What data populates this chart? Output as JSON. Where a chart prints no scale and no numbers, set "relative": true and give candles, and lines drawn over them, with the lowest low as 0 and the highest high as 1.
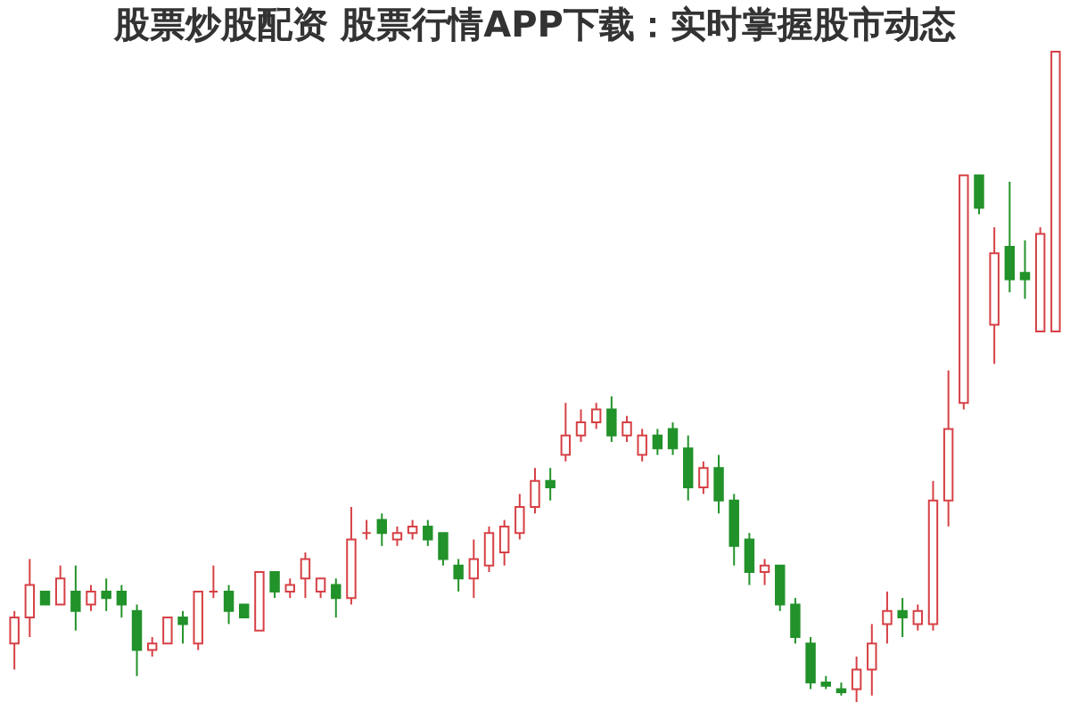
{
  "chart_data": {
    "type": "candlestick",
    "title": "股票炒股配资 股票行情APP下载：实时掌握股市动态",
    "relative": true,
    "tick_labels": false,
    "grid": false,
    "categories": [
      null,
      null,
      null,
      null,
      null,
      null,
      null,
      null,
      null,
      null,
      null,
      null,
      null,
      null,
      null,
      null,
      null,
      null,
      null,
      null,
      null,
      null,
      null,
      null,
      null,
      null,
      null,
      null,
      null,
      null,
      null,
      null,
      null,
      null,
      null,
      null,
      null,
      null,
      null,
      null,
      null,
      null,
      null,
      null,
      null,
      null,
      null,
      null,
      null,
      null,
      null,
      null,
      null,
      null,
      null,
      null,
      null,
      null,
      null,
      null,
      null,
      null,
      null,
      null,
      null,
      null,
      null,
      null,
      null
    ],
    "ohlc": [
      [
        0.09,
        0.14,
        0.05,
        0.13
      ],
      [
        0.13,
        0.22,
        0.1,
        0.18
      ],
      [
        0.17,
        0.17,
        0.15,
        0.15
      ],
      [
        0.15,
        0.21,
        0.15,
        0.19
      ],
      [
        0.17,
        0.21,
        0.11,
        0.14
      ],
      [
        0.15,
        0.18,
        0.14,
        0.17
      ],
      [
        0.17,
        0.19,
        0.14,
        0.16
      ],
      [
        0.17,
        0.18,
        0.13,
        0.15
      ],
      [
        0.14,
        0.15,
        0.04,
        0.08
      ],
      [
        0.08,
        0.1,
        0.07,
        0.09
      ],
      [
        0.09,
        0.13,
        0.09,
        0.13
      ],
      [
        0.13,
        0.14,
        0.09,
        0.12
      ],
      [
        0.09,
        0.17,
        0.08,
        0.17
      ],
      [
        0.17,
        0.21,
        0.16,
        0.17
      ],
      [
        0.17,
        0.18,
        0.12,
        0.14
      ],
      [
        0.15,
        0.15,
        0.13,
        0.13
      ],
      [
        0.11,
        0.2,
        0.11,
        0.2
      ],
      [
        0.2,
        0.2,
        0.16,
        0.17
      ],
      [
        0.17,
        0.19,
        0.16,
        0.18
      ],
      [
        0.19,
        0.23,
        0.16,
        0.22
      ],
      [
        0.17,
        0.19,
        0.16,
        0.19
      ],
      [
        0.18,
        0.19,
        0.13,
        0.16
      ],
      [
        0.16,
        0.3,
        0.15,
        0.25
      ],
      [
        0.26,
        0.28,
        0.25,
        0.26
      ],
      [
        0.28,
        0.29,
        0.24,
        0.26
      ],
      [
        0.25,
        0.27,
        0.24,
        0.26
      ],
      [
        0.26,
        0.28,
        0.25,
        0.27
      ],
      [
        0.27,
        0.28,
        0.24,
        0.25
      ],
      [
        0.26,
        0.26,
        0.21,
        0.22
      ],
      [
        0.21,
        0.22,
        0.17,
        0.19
      ],
      [
        0.19,
        0.25,
        0.16,
        0.22
      ],
      [
        0.21,
        0.27,
        0.2,
        0.26
      ],
      [
        0.23,
        0.28,
        0.21,
        0.27
      ],
      [
        0.26,
        0.32,
        0.25,
        0.3
      ],
      [
        0.3,
        0.36,
        0.29,
        0.34
      ],
      [
        0.34,
        0.36,
        0.31,
        0.33
      ],
      [
        0.38,
        0.46,
        0.37,
        0.41
      ],
      [
        0.41,
        0.45,
        0.4,
        0.43
      ],
      [
        0.43,
        0.46,
        0.42,
        0.45
      ],
      [
        0.45,
        0.47,
        0.4,
        0.41
      ],
      [
        0.41,
        0.44,
        0.4,
        0.43
      ],
      [
        0.38,
        0.42,
        0.37,
        0.41
      ],
      [
        0.41,
        0.42,
        0.38,
        0.39
      ],
      [
        0.42,
        0.43,
        0.38,
        0.39
      ],
      [
        0.39,
        0.41,
        0.31,
        0.33
      ],
      [
        0.33,
        0.37,
        0.32,
        0.36
      ],
      [
        0.36,
        0.38,
        0.29,
        0.31
      ],
      [
        0.31,
        0.32,
        0.21,
        0.24
      ],
      [
        0.25,
        0.26,
        0.18,
        0.2
      ],
      [
        0.2,
        0.22,
        0.18,
        0.21
      ],
      [
        0.21,
        0.21,
        0.14,
        0.15
      ],
      [
        0.15,
        0.16,
        0.09,
        0.1
      ],
      [
        0.09,
        0.1,
        0.02,
        0.03
      ],
      [
        0.03,
        0.04,
        0.02,
        0.025
      ],
      [
        0.02,
        0.03,
        0.01,
        0.015
      ],
      [
        0.02,
        0.07,
        0,
        0.05
      ],
      [
        0.05,
        0.12,
        0.01,
        0.09
      ],
      [
        0.12,
        0.17,
        0.09,
        0.14
      ],
      [
        0.14,
        0.16,
        0.1,
        0.13
      ],
      [
        0.12,
        0.15,
        0.11,
        0.14
      ],
      [
        0.12,
        0.34,
        0.11,
        0.31
      ],
      [
        0.31,
        0.51,
        0.27,
        0.42
      ],
      [
        0.46,
        0.81,
        0.45,
        0.81
      ],
      [
        0.81,
        0.81,
        0.75,
        0.76
      ],
      [
        0.58,
        0.73,
        0.52,
        0.69
      ],
      [
        0.7,
        0.8,
        0.63,
        0.65
      ],
      [
        0.66,
        0.71,
        0.62,
        0.65
      ],
      [
        0.57,
        0.73,
        0.57,
        0.72
      ],
      [
        0.57,
        1,
        0.57,
        1
      ]
    ],
    "colors": [
      "#d64045",
      "#d64045",
      "#22922a",
      "#d64045",
      "#22922a",
      "#d64045",
      "#22922a",
      "#22922a",
      "#22922a",
      "#d64045",
      "#d64045",
      "#22922a",
      "#d64045",
      "#d64045",
      "#22922a",
      "#22922a",
      "#d64045",
      "#22922a",
      "#d64045",
      "#d64045",
      "#d64045",
      "#22922a",
      "#d64045",
      "#d64045",
      "#22922a",
      "#d64045",
      "#d64045",
      "#22922a",
      "#22922a",
      "#22922a",
      "#d64045",
      "#d64045",
      "#d64045",
      "#d64045",
      "#d64045",
      "#22922a",
      "#d64045",
      "#d64045",
      "#d64045",
      "#22922a",
      "#d64045",
      "#d64045",
      "#22922a",
      "#22922a",
      "#22922a",
      "#d64045",
      "#22922a",
      "#22922a",
      "#22922a",
      "#d64045",
      "#22922a",
      "#22922a",
      "#22922a",
      "#22922a",
      "#22922a",
      "#d64045",
      "#d64045",
      "#d64045",
      "#22922a",
      "#d64045",
      "#d64045",
      "#d64045",
      "#d64045",
      "#22922a",
      "#d64045",
      "#22922a",
      "#22922a",
      "#d64045",
      "#d64045"
    ]
  }
}
